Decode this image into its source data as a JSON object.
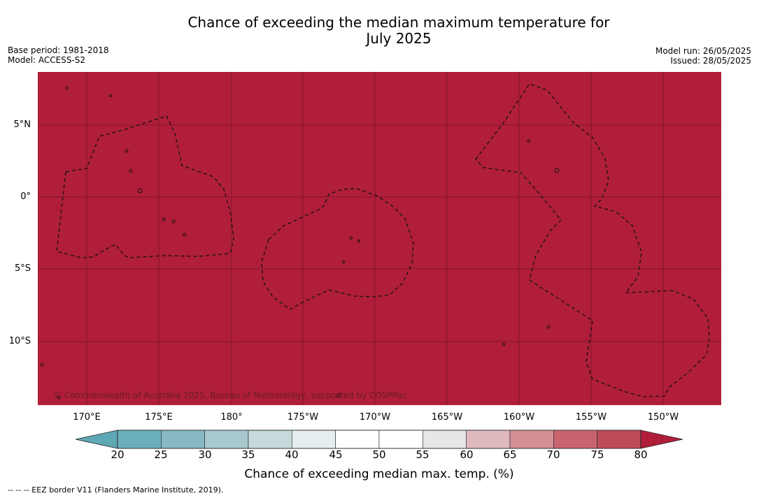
{
  "title": {
    "line1": "Chance of exceeding the median maximum temperature for",
    "line2": "July 2025"
  },
  "meta_left": {
    "base_period": "Base period: 1981-2018",
    "model": "Model: ACCESS-S2"
  },
  "meta_right": {
    "model_run": "Model run: 26/05/2025",
    "issued": "Issued: 28/05/2025"
  },
  "map": {
    "fill_color": "#b01e39",
    "grid_color": "#5a0d1c",
    "latitude_labels": [
      "5°N",
      "0°",
      "5°S",
      "10°S"
    ],
    "longitude_labels": [
      "170°E",
      "175°E",
      "180°",
      "175°W",
      "170°W",
      "165°W",
      "160°W",
      "155°W",
      "150°W"
    ],
    "eez_line_style": "dashed",
    "copyright": "© Commonwealth of Australia 2025, Bureau of Meteorology, supported by COSPPac"
  },
  "colorbar": {
    "ticks": [
      "20",
      "25",
      "30",
      "35",
      "40",
      "45",
      "50",
      "55",
      "60",
      "65",
      "70",
      "75",
      "80"
    ],
    "colors": [
      "#6aaebb",
      "#88b8c3",
      "#a7c9ce",
      "#c6dadc",
      "#e7eef0",
      "#ffffff",
      "#ffffff",
      "#e8e6e7",
      "#e0b9be",
      "#d58f96",
      "#c8646f",
      "#be4b58"
    ],
    "low_extension_color": "#5ea7b5",
    "high_extension_color": "#b01e39",
    "label": "Chance of exceeding median max. temp. (%)"
  },
  "footer": "--  --  -- EEZ border V11 (Flanders Marine Institute, 2019)."
}
